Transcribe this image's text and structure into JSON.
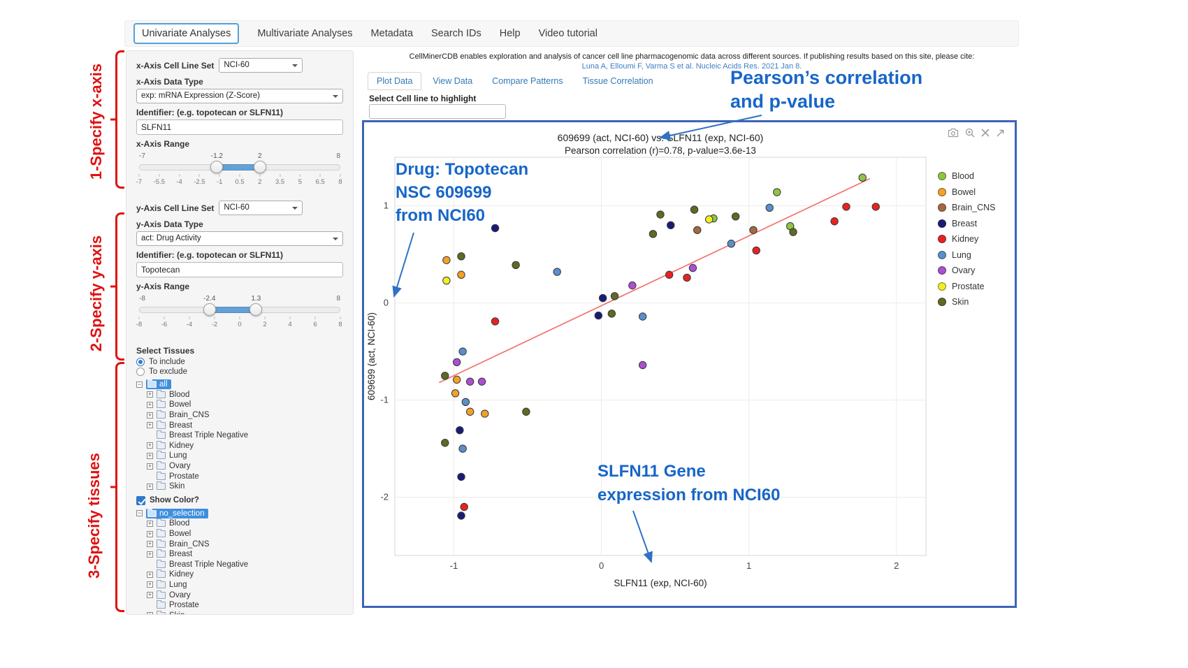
{
  "nav": {
    "tabs": [
      {
        "label": "Univariate Analyses",
        "active": true
      },
      {
        "label": "Multivariate Analyses",
        "active": false
      },
      {
        "label": "Metadata",
        "active": false
      },
      {
        "label": "Search IDs",
        "active": false
      },
      {
        "label": "Help",
        "active": false
      },
      {
        "label": "Video tutorial",
        "active": false
      }
    ]
  },
  "annotations_red": {
    "x_axis": "1-Specify x-axis",
    "y_axis": "2-Specify y-axis",
    "tissues": "3-Specify tissues"
  },
  "sidebar": {
    "x_cell_line_set_label": "x-Axis Cell Line Set",
    "x_cell_line_set_value": "NCI-60",
    "x_data_type_label": "x-Axis Data Type",
    "x_data_type_value": "exp: mRNA Expression (Z-Score)",
    "identifier_label": "Identifier: (e.g. topotecan or SLFN11)",
    "x_identifier_value": "SLFN11",
    "x_range_label": "x-Axis Range",
    "x_slider": {
      "min": -7,
      "max": 8,
      "low": -1.2,
      "high": 2,
      "ticks": [
        "-7",
        "-5.5",
        "-4",
        "-2.5",
        "-1",
        "0.5",
        "2",
        "3.5",
        "5",
        "6.5",
        "8"
      ]
    },
    "y_cell_line_set_label": "y-Axis Cell Line Set",
    "y_cell_line_set_value": "NCI-60",
    "y_data_type_label": "y-Axis Data Type",
    "y_data_type_value": "act: Drug Activity",
    "y_identifier_value": "Topotecan",
    "y_range_label": "y-Axis Range",
    "y_slider": {
      "min": -8,
      "max": 8,
      "low": -2.4,
      "high": 1.3,
      "ticks": [
        "-8",
        "-6",
        "-4",
        "-2",
        "0",
        "2",
        "4",
        "6",
        "8"
      ]
    },
    "select_tissues_label": "Select Tissues",
    "radio_include": "To include",
    "radio_exclude": "To exclude",
    "tree_include_root": "all",
    "tree_exclude_root": "no_selection",
    "tissues": [
      {
        "label": "Blood",
        "expandable": true
      },
      {
        "label": "Bowel",
        "expandable": true
      },
      {
        "label": "Brain_CNS",
        "expandable": true
      },
      {
        "label": "Breast",
        "expandable": true
      },
      {
        "label": "Breast Triple Negative",
        "expandable": false
      },
      {
        "label": "Kidney",
        "expandable": true
      },
      {
        "label": "Lung",
        "expandable": true
      },
      {
        "label": "Ovary",
        "expandable": true
      },
      {
        "label": "Prostate",
        "expandable": false
      },
      {
        "label": "Skin",
        "expandable": true
      }
    ],
    "show_color_label": "Show Color?"
  },
  "main": {
    "citation_line1": "CellMinerCDB enables exploration and analysis of cancer cell line pharmacogenomic data across different sources. If publishing results based on this site, please cite:",
    "citation_link": "Luna A, Elloumi F, Varma S et al. Nucleic Acids Res. 2021 Jan 8.",
    "tabs": [
      "Plot Data",
      "View Data",
      "Compare Patterns",
      "Tissue Correlation"
    ],
    "highlight_label": "Select Cell line to highlight",
    "highlight_value": ""
  },
  "chart_data": {
    "type": "scatter",
    "title": "609699 (act, NCI-60) vs. SLFN11 (exp, NCI-60)",
    "subtitle": "Pearson correlation (r)=0.78, p-value=3.6e-13",
    "xlabel": "SLFN11 (exp, NCI-60)",
    "ylabel": "609699 (act, NCI-60)",
    "xlim": [
      -1.4,
      2.2
    ],
    "ylim": [
      -2.6,
      1.5
    ],
    "xticks": [
      -1,
      0,
      1,
      2
    ],
    "yticks": [
      -2,
      -1,
      0,
      1
    ],
    "grid": true,
    "legend_position": "right",
    "regression_line": {
      "x": [
        -1.1,
        1.82
      ],
      "y": [
        -0.82,
        1.28
      ],
      "color": "#f4716e"
    },
    "series": [
      {
        "name": "Blood",
        "color": "#8ec63f",
        "points": [
          [
            0.76,
            0.87
          ],
          [
            1.19,
            1.14
          ],
          [
            1.28,
            0.79
          ],
          [
            1.77,
            1.29
          ]
        ]
      },
      {
        "name": "Bowel",
        "color": "#f5a028",
        "points": [
          [
            -1.05,
            0.44
          ],
          [
            -0.95,
            0.29
          ],
          [
            -0.98,
            -0.79
          ],
          [
            -0.99,
            -0.93
          ],
          [
            -0.89,
            -1.12
          ],
          [
            -0.79,
            -1.14
          ]
        ]
      },
      {
        "name": "Brain_CNS",
        "color": "#a5693f",
        "points": [
          [
            0.65,
            0.75
          ],
          [
            1.03,
            0.75
          ]
        ]
      },
      {
        "name": "Breast",
        "color": "#1b1b77",
        "points": [
          [
            -0.72,
            0.77
          ],
          [
            0.47,
            0.8
          ],
          [
            0.01,
            0.05
          ],
          [
            -0.02,
            -0.13
          ],
          [
            -0.96,
            -1.31
          ],
          [
            -0.95,
            -1.79
          ],
          [
            -0.95,
            -2.19
          ]
        ]
      },
      {
        "name": "Kidney",
        "color": "#e8231f",
        "points": [
          [
            0.46,
            0.29
          ],
          [
            0.58,
            0.26
          ],
          [
            1.05,
            0.54
          ],
          [
            1.58,
            0.84
          ],
          [
            1.66,
            0.99
          ],
          [
            1.86,
            0.99
          ],
          [
            -0.72,
            -0.19
          ],
          [
            -0.93,
            -2.1
          ]
        ]
      },
      {
        "name": "Lung",
        "color": "#5b8fc8",
        "points": [
          [
            -0.3,
            0.32
          ],
          [
            0.88,
            0.61
          ],
          [
            1.14,
            0.98
          ],
          [
            0.28,
            -0.14
          ],
          [
            -0.94,
            -0.5
          ],
          [
            -0.92,
            -1.02
          ],
          [
            -0.94,
            -1.5
          ]
        ]
      },
      {
        "name": "Ovary",
        "color": "#ad4fd1",
        "points": [
          [
            0.21,
            0.18
          ],
          [
            0.62,
            0.36
          ],
          [
            -0.98,
            -0.61
          ],
          [
            -0.89,
            -0.81
          ],
          [
            -0.81,
            -0.81
          ],
          [
            0.28,
            -0.64
          ]
        ]
      },
      {
        "name": "Prostate",
        "color": "#f3ee23",
        "points": [
          [
            -1.05,
            0.23
          ],
          [
            0.73,
            0.86
          ]
        ]
      },
      {
        "name": "Skin",
        "color": "#5e6b22",
        "points": [
          [
            0.35,
            0.71
          ],
          [
            0.4,
            0.91
          ],
          [
            0.63,
            0.96
          ],
          [
            0.91,
            0.89
          ],
          [
            1.3,
            0.73
          ],
          [
            -0.58,
            0.39
          ],
          [
            -0.95,
            0.48
          ],
          [
            0.09,
            0.07
          ],
          [
            0.07,
            -0.11
          ],
          [
            -1.06,
            -0.75
          ],
          [
            -0.51,
            -1.12
          ],
          [
            -1.06,
            -1.44
          ]
        ]
      }
    ]
  },
  "annotations_blue": [
    {
      "id": "pearson",
      "lines": [
        "Pearson’s correlation",
        "and p-value"
      ]
    },
    {
      "id": "drug",
      "lines": [
        "Drug: Topotecan",
        "NSC 609699",
        "from NCI60"
      ]
    },
    {
      "id": "gene",
      "lines": [
        "SLFN11 Gene",
        "expression from NCI60"
      ]
    }
  ],
  "colors": {
    "plot_border": "#3c64b8",
    "annotation_blue": "#1766c8",
    "annotation_red": "#e01111",
    "link_blue": "#3f7ec8",
    "slider_fill": "#64a1d4",
    "tree_selected": "#3f8fde"
  }
}
